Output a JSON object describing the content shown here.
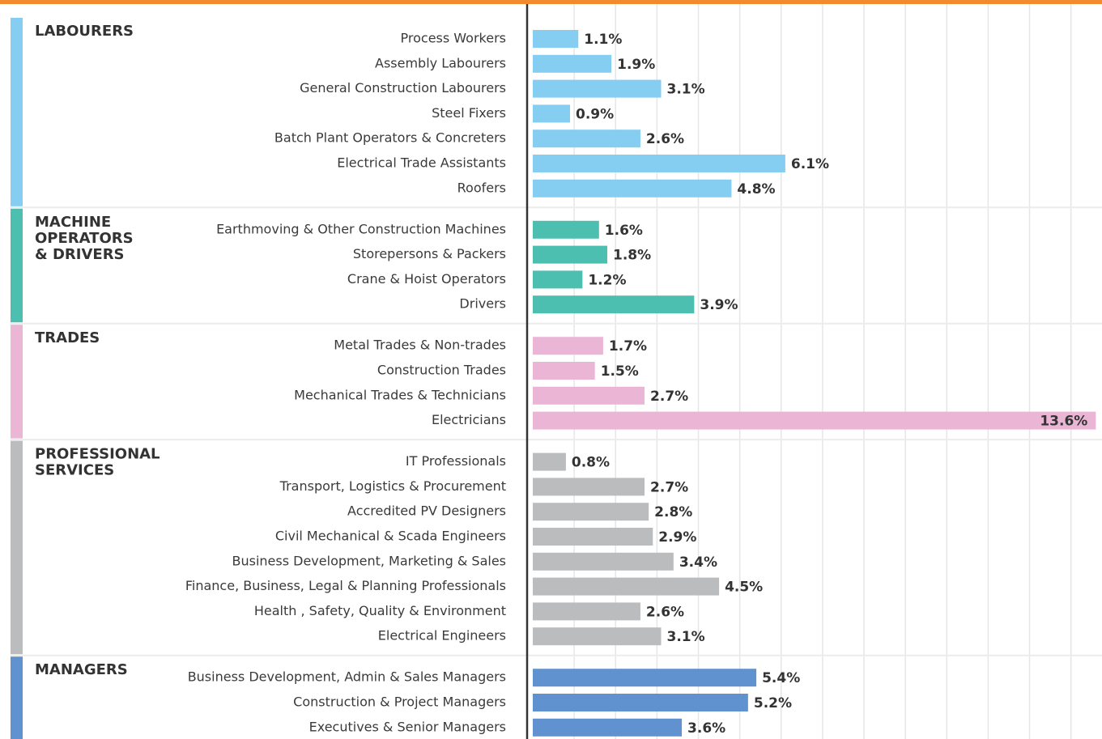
{
  "chart_data": {
    "type": "bar",
    "xlim": [
      0,
      13.75
    ],
    "xticks": [
      0,
      1,
      2,
      3,
      4,
      5,
      6,
      7,
      8,
      9,
      10,
      11,
      12,
      13
    ],
    "grid": true,
    "groups": [
      {
        "name": [
          "LABOURERS"
        ],
        "color": "#86cdf2",
        "categories": [
          "Process Workers",
          "Assembly Labourers",
          "General Construction Labourers",
          "Steel Fixers",
          "Batch Plant Operators & Concreters",
          "Electrical Trade Assistants",
          "Roofers"
        ],
        "values": [
          1.1,
          1.9,
          3.1,
          0.9,
          2.6,
          6.1,
          4.8
        ],
        "value_labels": [
          "1.1%",
          "1.9%",
          "3.1%",
          "0.9%",
          "2.6%",
          "6.1%",
          "4.8%"
        ]
      },
      {
        "name": [
          "MACHINE",
          "OPERATORS",
          "& DRIVERS"
        ],
        "color": "#4dbfb0",
        "categories": [
          "Earthmoving & Other Construction Machines",
          "Storepersons & Packers",
          "Crane & Hoist Operators",
          "Drivers"
        ],
        "values": [
          1.6,
          1.8,
          1.2,
          3.9
        ],
        "value_labels": [
          "1.6%",
          "1.8%",
          "1.2%",
          "3.9%"
        ]
      },
      {
        "name": [
          "TRADES"
        ],
        "color": "#ebb6d6",
        "categories": [
          "Metal Trades & Non-trades",
          "Construction Trades",
          "Mechanical Trades & Technicians",
          "Electricians"
        ],
        "values": [
          1.7,
          1.5,
          2.7,
          13.6
        ],
        "value_labels": [
          "1.7%",
          "1.5%",
          "2.7%",
          "13.6%"
        ]
      },
      {
        "name": [
          "PROFESSIONAL",
          "SERVICES"
        ],
        "color": "#bbbcbe",
        "categories": [
          "IT Professionals",
          "Transport, Logistics & Procurement",
          "Accredited PV Designers",
          "Civil Mechanical & Scada Engineers",
          "Business Development, Marketing & Sales",
          "Finance, Business, Legal & Planning Professionals",
          "Health , Safety, Quality & Environment",
          "Electrical Engineers"
        ],
        "values": [
          0.8,
          2.7,
          2.8,
          2.9,
          3.4,
          4.5,
          2.6,
          3.1
        ],
        "value_labels": [
          "0.8%",
          "2.7%",
          "2.8%",
          "2.9%",
          "3.4%",
          "4.5%",
          "2.6%",
          "3.1%"
        ]
      },
      {
        "name": [
          "MANAGERS"
        ],
        "color": "#6092d0",
        "categories": [
          "Business Development, Admin & Sales Managers",
          "Construction & Project Managers",
          "Executives & Senior Managers"
        ],
        "values": [
          5.4,
          5.2,
          3.6
        ],
        "value_labels": [
          "5.4%",
          "5.2%",
          "3.6%"
        ]
      }
    ]
  }
}
